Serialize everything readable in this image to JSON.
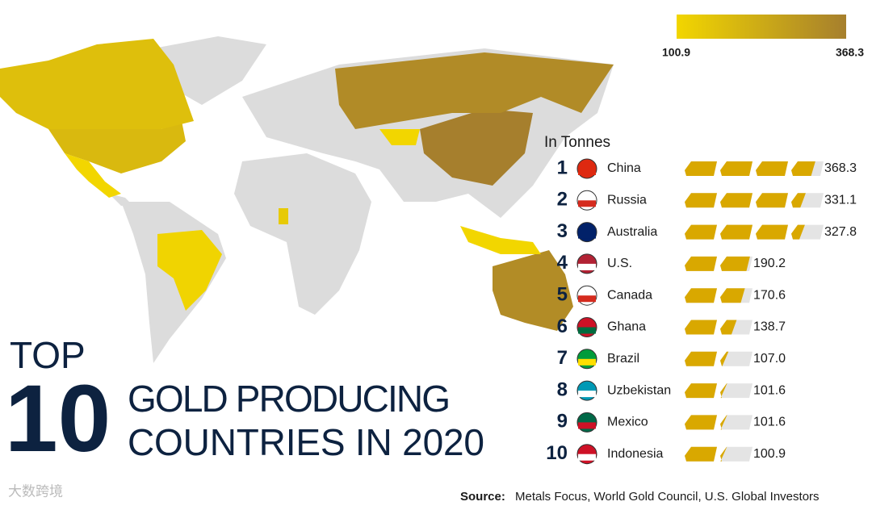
{
  "chart_data": {
    "type": "pictogram",
    "title_top": "TOP",
    "title_number": "10",
    "title_line1": "GOLD PRODUCING",
    "title_line2": "COUNTRIES IN 2020",
    "unit_label": "In Tonnes",
    "ranks": [
      1,
      2,
      3,
      4,
      5,
      6,
      7,
      8,
      9,
      10
    ],
    "categories": [
      "China",
      "Russia",
      "Australia",
      "U.S.",
      "Canada",
      "Ghana",
      "Brazil",
      "Uzbekistan",
      "Mexico",
      "Indonesia"
    ],
    "values": [
      368.3,
      331.1,
      327.8,
      190.2,
      170.6,
      138.7,
      107.0,
      101.6,
      101.6,
      100.9
    ],
    "value_labels": [
      "368.3",
      "331.1",
      "327.8",
      "190.2",
      "170.6",
      "138.7",
      "107.0",
      "101.6",
      "101.6",
      "100.9"
    ],
    "color_scale": {
      "min": 100.9,
      "max": 368.3,
      "min_label": "100.9",
      "max_label": "368.3",
      "colors": [
        "#f2d600",
        "#a67f2d"
      ]
    },
    "source_prefix": "Source:",
    "source": "Metals Focus, World Gold Council, U.S. Global Investors",
    "watermark": "大数跨境"
  }
}
